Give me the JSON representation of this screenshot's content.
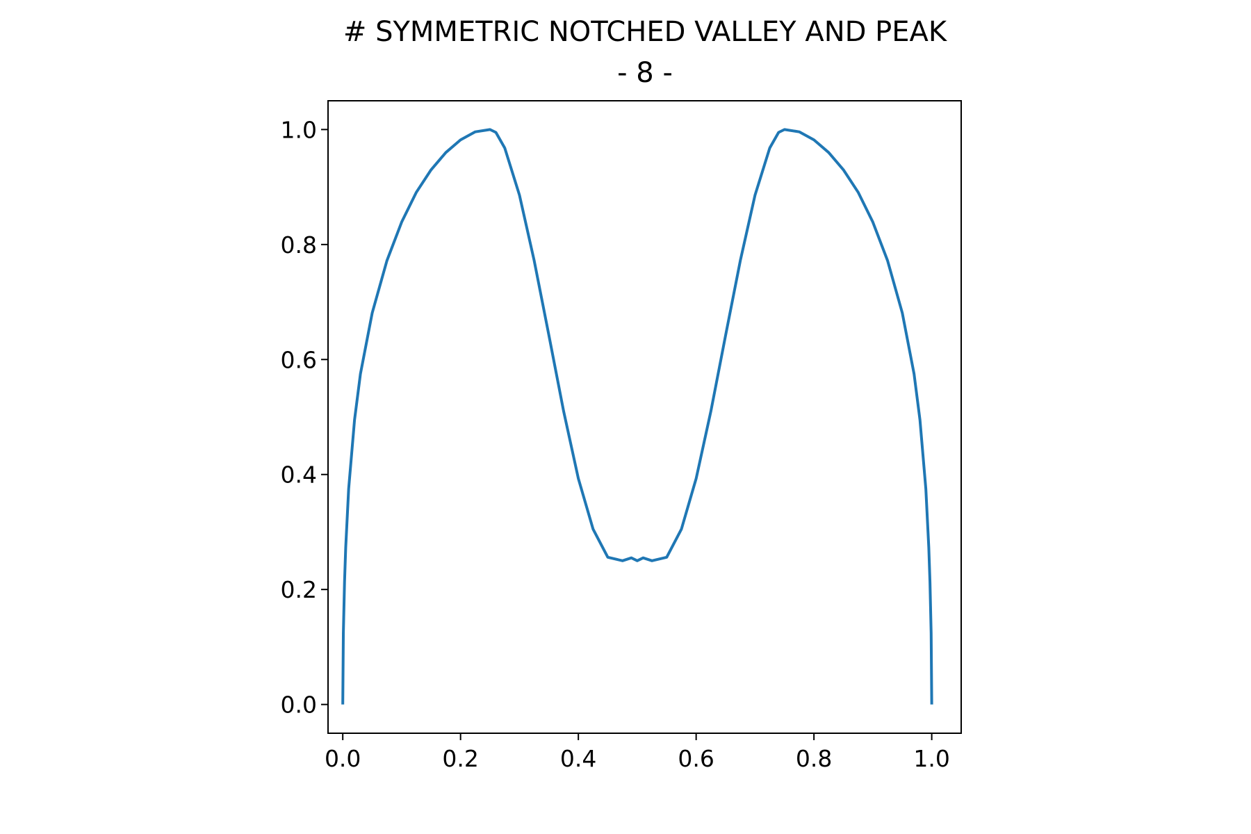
{
  "chart_data": {
    "type": "line",
    "title": "# SYMMETRIC NOTCHED VALLEY AND PEAK",
    "subtitle": "- 8 -",
    "xlabel": "",
    "ylabel": "",
    "xlim": [
      -0.025,
      1.05
    ],
    "ylim": [
      -0.05,
      1.05
    ],
    "xticks": [
      0.0,
      0.2,
      0.4,
      0.6,
      0.8,
      1.0
    ],
    "xtick_labels": [
      "0.0",
      "0.2",
      "0.4",
      "0.6",
      "0.8",
      "1.0"
    ],
    "yticks": [
      0.0,
      0.2,
      0.4,
      0.6,
      0.8,
      1.0
    ],
    "ytick_labels": [
      "0.0",
      "0.2",
      "0.4",
      "0.6",
      "0.8",
      "1.0"
    ],
    "grid": false,
    "legend": "none",
    "series": [
      {
        "color": "#1f77b4",
        "x": [
          0.0,
          0.001,
          0.003,
          0.005,
          0.01,
          0.02,
          0.03,
          0.05,
          0.075,
          0.1,
          0.125,
          0.15,
          0.175,
          0.2,
          0.225,
          0.25,
          0.26,
          0.275,
          0.3,
          0.325,
          0.35,
          0.375,
          0.4,
          0.425,
          0.45,
          0.475,
          0.49,
          0.5,
          0.51,
          0.525,
          0.55,
          0.575,
          0.6,
          0.625,
          0.65,
          0.675,
          0.7,
          0.725,
          0.74,
          0.75,
          0.775,
          0.8,
          0.825,
          0.85,
          0.875,
          0.9,
          0.925,
          0.95,
          0.97,
          0.98,
          0.99,
          0.995,
          0.997,
          0.999,
          1.0
        ],
        "y": [
          0.0,
          0.124,
          0.213,
          0.273,
          0.375,
          0.495,
          0.575,
          0.681,
          0.772,
          0.839,
          0.891,
          0.93,
          0.96,
          0.982,
          0.996,
          1.0,
          0.995,
          0.968,
          0.886,
          0.772,
          0.642,
          0.51,
          0.393,
          0.305,
          0.256,
          0.25,
          0.255,
          0.25,
          0.255,
          0.25,
          0.256,
          0.305,
          0.393,
          0.51,
          0.642,
          0.772,
          0.886,
          0.968,
          0.995,
          1.0,
          0.996,
          0.982,
          0.96,
          0.93,
          0.891,
          0.839,
          0.772,
          0.681,
          0.575,
          0.495,
          0.375,
          0.273,
          0.213,
          0.124,
          0.0
        ]
      }
    ]
  }
}
